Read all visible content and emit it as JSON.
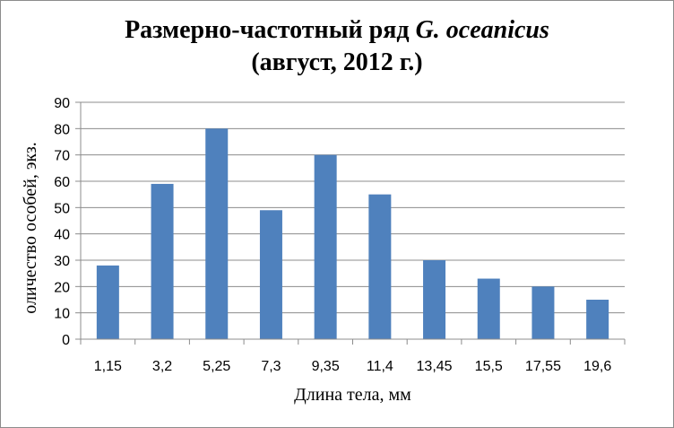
{
  "chart_data": {
    "type": "bar",
    "title_line1_prefix": "Размерно-частотный ряд ",
    "title_line1_italic": "G. oceanicus",
    "title_line2": "(август, 2012 г.)",
    "xlabel": "Длина тела, мм",
    "ylabel": "оличество особей, экз.",
    "categories": [
      "1,15",
      "3,2",
      "5,25",
      "7,3",
      "9,35",
      "11,4",
      "13,45",
      "15,5",
      "17,55",
      "19,6"
    ],
    "values": [
      28,
      59,
      80,
      49,
      70,
      55,
      30,
      23,
      20,
      15
    ],
    "ylim": [
      0,
      90
    ],
    "yticks": [
      0,
      10,
      20,
      30,
      40,
      50,
      60,
      70,
      80,
      90
    ],
    "grid": true,
    "legend": "none",
    "bar_color": "#4f81bd"
  }
}
